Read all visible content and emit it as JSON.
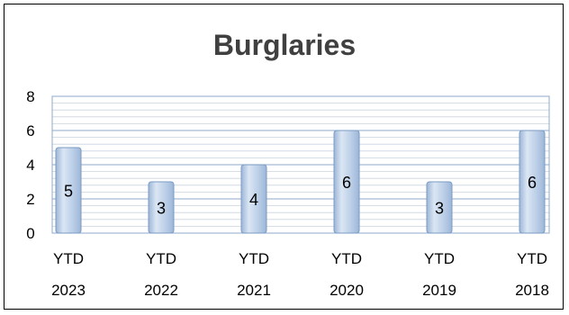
{
  "chart_data": {
    "type": "bar",
    "title": "Burglaries",
    "categories": [
      [
        "YTD",
        "2023"
      ],
      [
        "YTD",
        "2022"
      ],
      [
        "YTD",
        "2021"
      ],
      [
        "YTD",
        "2020"
      ],
      [
        "YTD",
        "2019"
      ],
      [
        "YTD",
        "2018"
      ]
    ],
    "values": [
      5,
      3,
      4,
      6,
      3,
      6
    ],
    "data_labels": [
      "5",
      "3",
      "4",
      "6",
      "3",
      "6"
    ],
    "yticks": [
      "0",
      "2",
      "4",
      "6",
      "8"
    ],
    "ylim": [
      0,
      8
    ],
    "grid": true,
    "legend": "none",
    "colors": {
      "bar_edge": "#7a9bc4",
      "bar_light": "#dbe6f4",
      "bar_mid": "#b9cde6",
      "bar_dark": "#9db6d8",
      "grid": "#c9d3e0",
      "plot_border": "#8eaacd"
    }
  }
}
